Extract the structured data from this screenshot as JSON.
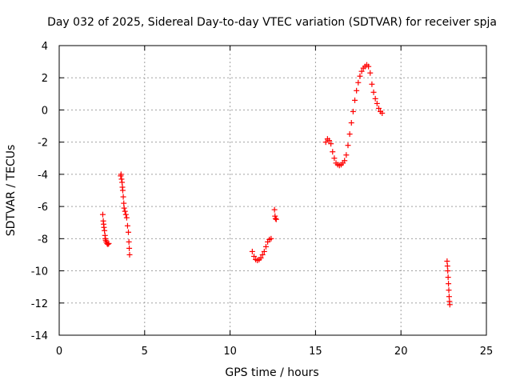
{
  "chart_data": {
    "type": "scatter",
    "title": "Day 032 of 2025, Sidereal Day-to-day VTEC variation (SDTVAR) for receiver spja",
    "xlabel": "GPS time / hours",
    "ylabel": "SDTVAR / TECUs",
    "xlim": [
      0,
      25
    ],
    "ylim": [
      -14,
      4
    ],
    "x_ticks": [
      0,
      5,
      10,
      15,
      20,
      25
    ],
    "y_ticks": [
      -14,
      -12,
      -10,
      -8,
      -6,
      -4,
      -2,
      0,
      2,
      4
    ],
    "grid": true,
    "marker": "+",
    "series_color": "#ff0000",
    "series": [
      {
        "points": [
          [
            2.55,
            -6.5
          ],
          [
            2.58,
            -6.9
          ],
          [
            2.6,
            -7.1
          ],
          [
            2.62,
            -7.3
          ],
          [
            2.65,
            -7.5
          ],
          [
            2.68,
            -7.8
          ],
          [
            2.7,
            -8.0
          ],
          [
            2.72,
            -8.1
          ],
          [
            2.75,
            -8.2
          ],
          [
            2.8,
            -8.3
          ],
          [
            2.85,
            -8.35
          ],
          [
            2.9,
            -8.3
          ],
          [
            3.6,
            -4.1
          ],
          [
            3.62,
            -4.0
          ],
          [
            3.65,
            -4.3
          ],
          [
            3.68,
            -4.5
          ],
          [
            3.7,
            -4.8
          ],
          [
            3.72,
            -5.0
          ],
          [
            3.75,
            -5.4
          ],
          [
            3.78,
            -5.8
          ],
          [
            3.8,
            -6.1
          ],
          [
            3.85,
            -6.3
          ],
          [
            3.9,
            -6.5
          ],
          [
            3.95,
            -6.7
          ],
          [
            4.0,
            -7.2
          ],
          [
            4.05,
            -7.6
          ],
          [
            4.08,
            -8.2
          ],
          [
            4.1,
            -8.6
          ],
          [
            4.12,
            -9.0
          ],
          [
            11.3,
            -8.8
          ],
          [
            11.4,
            -9.1
          ],
          [
            11.5,
            -9.3
          ],
          [
            11.6,
            -9.35
          ],
          [
            11.7,
            -9.3
          ],
          [
            11.8,
            -9.2
          ],
          [
            11.9,
            -9.0
          ],
          [
            12.0,
            -8.8
          ],
          [
            12.1,
            -8.5
          ],
          [
            12.2,
            -8.2
          ],
          [
            12.3,
            -8.05
          ],
          [
            12.4,
            -8.0
          ],
          [
            12.6,
            -6.2
          ],
          [
            12.63,
            -6.6
          ],
          [
            12.66,
            -6.75
          ],
          [
            12.7,
            -6.8
          ],
          [
            15.6,
            -2.0
          ],
          [
            15.7,
            -1.8
          ],
          [
            15.8,
            -1.9
          ],
          [
            15.9,
            -2.1
          ],
          [
            16.0,
            -2.6
          ],
          [
            16.1,
            -3.0
          ],
          [
            16.2,
            -3.3
          ],
          [
            16.3,
            -3.4
          ],
          [
            16.4,
            -3.45
          ],
          [
            16.5,
            -3.4
          ],
          [
            16.6,
            -3.3
          ],
          [
            16.7,
            -3.15
          ],
          [
            16.8,
            -2.8
          ],
          [
            16.9,
            -2.2
          ],
          [
            17.0,
            -1.5
          ],
          [
            17.1,
            -0.8
          ],
          [
            17.2,
            -0.1
          ],
          [
            17.3,
            0.6
          ],
          [
            17.4,
            1.2
          ],
          [
            17.5,
            1.7
          ],
          [
            17.6,
            2.1
          ],
          [
            17.7,
            2.4
          ],
          [
            17.8,
            2.6
          ],
          [
            17.9,
            2.7
          ],
          [
            18.0,
            2.8
          ],
          [
            18.1,
            2.7
          ],
          [
            18.2,
            2.3
          ],
          [
            18.3,
            1.6
          ],
          [
            18.4,
            1.1
          ],
          [
            18.5,
            0.7
          ],
          [
            18.6,
            0.4
          ],
          [
            18.7,
            0.1
          ],
          [
            18.8,
            -0.1
          ],
          [
            18.9,
            -0.2
          ],
          [
            22.7,
            -9.4
          ],
          [
            22.72,
            -9.7
          ],
          [
            22.74,
            -10.0
          ],
          [
            22.76,
            -10.4
          ],
          [
            22.78,
            -10.8
          ],
          [
            22.8,
            -11.2
          ],
          [
            22.82,
            -11.6
          ],
          [
            22.84,
            -11.9
          ],
          [
            22.86,
            -12.1
          ]
        ]
      }
    ]
  }
}
